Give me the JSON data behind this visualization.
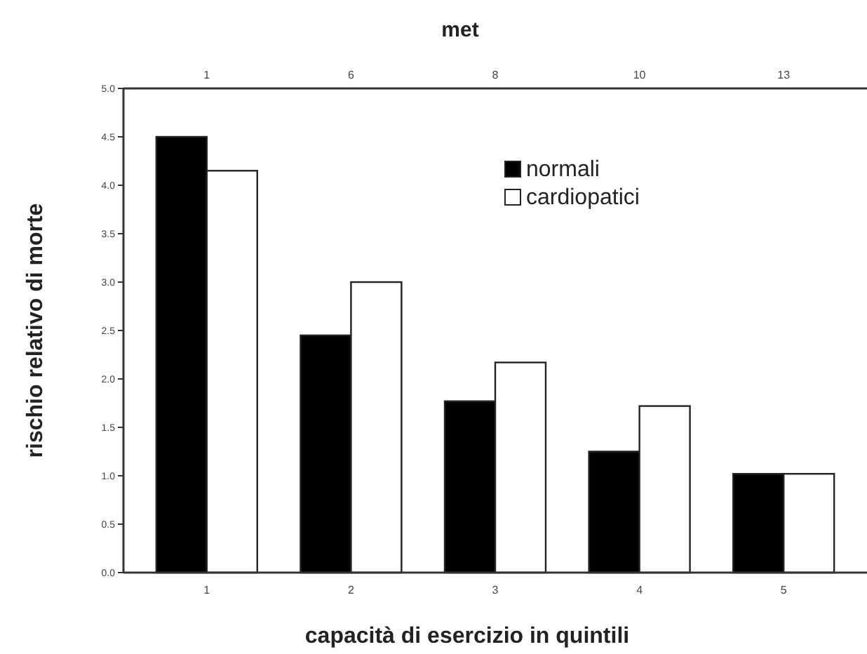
{
  "chart_data": {
    "type": "bar",
    "xlabel": "capacità di esercizio in quintili",
    "ylabel": "rischio relativo di morte",
    "x2label": "met",
    "categories": [
      "1",
      "2",
      "3",
      "4",
      "5"
    ],
    "series": [
      {
        "name": "normali",
        "color": "#000000",
        "values": [
          4.5,
          2.45,
          1.77,
          1.25,
          1.02
        ]
      },
      {
        "name": "cardiopatici",
        "color": "#ffffff",
        "values": [
          4.15,
          3.0,
          2.17,
          1.72,
          1.02
        ]
      }
    ],
    "ylim": [
      0,
      5
    ],
    "yticks": [
      {
        "value": 0,
        "label": "0.0"
      },
      {
        "value": 0.5,
        "label": "0.5"
      },
      {
        "value": 1,
        "label": "1.0"
      },
      {
        "value": 1.5,
        "label": "1.5"
      },
      {
        "value": 2,
        "label": "2.0"
      },
      {
        "value": 2.5,
        "label": "2.5"
      },
      {
        "value": 3,
        "label": "3.0"
      },
      {
        "value": 3.5,
        "label": "3.5"
      },
      {
        "value": 4,
        "label": "4.0"
      },
      {
        "value": 4.5,
        "label": "4.5"
      },
      {
        "value": 5,
        "label": "5.0"
      }
    ],
    "annotations": [
      "1",
      "6",
      "8",
      "10",
      "13"
    ],
    "legend": "top right",
    "grid": false
  }
}
